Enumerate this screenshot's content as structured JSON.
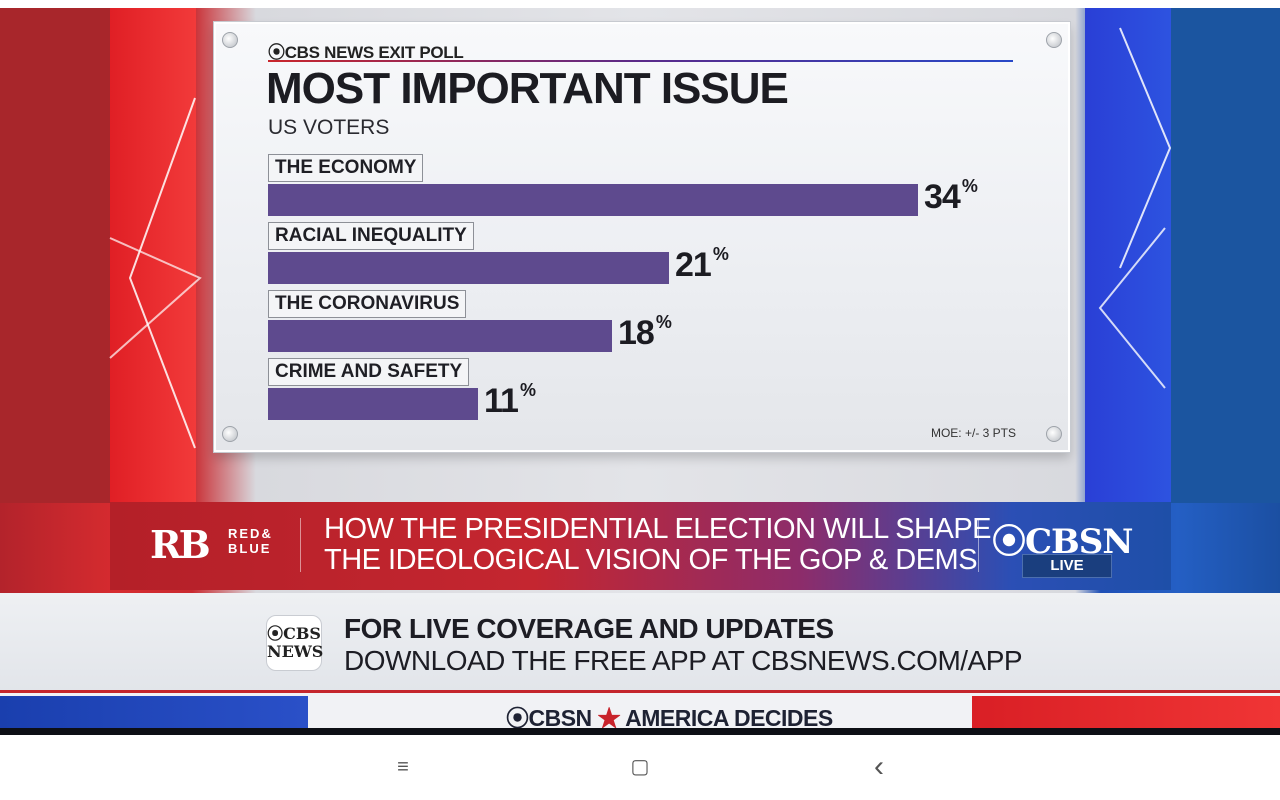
{
  "board": {
    "brand": "⦿CBS NEWS EXIT POLL",
    "title": "MOST IMPORTANT ISSUE",
    "subtitle": "US VOTERS",
    "moe": "MOE: +/- 3 PTS"
  },
  "chart_data": {
    "type": "bar",
    "title": "MOST IMPORTANT ISSUE",
    "subtitle": "US VOTERS",
    "categories": [
      "THE ECONOMY",
      "RACIAL INEQUALITY",
      "THE CORONAVIRUS",
      "CRIME AND SAFETY"
    ],
    "values": [
      34,
      21,
      18,
      11
    ],
    "value_labels": [
      "34",
      "21",
      "18",
      "11"
    ],
    "unit": "%",
    "bar_color": "#5e4a8e",
    "annotation": "MOE: +/- 3 PTS"
  },
  "lower_third": {
    "rb_logo": "RB",
    "rb_line1": "RED&",
    "rb_line2": "BLUE",
    "headline_line1": "HOW THE PRESIDENTIAL ELECTION WILL SHAPE",
    "headline_line2": "THE IDEOLOGICAL VISION OF THE GOP & DEMS",
    "network": "⦿CBSN",
    "live": "LIVE"
  },
  "promo": {
    "logo_line1": "⦿CBS",
    "logo_line2": "NEWS",
    "line1": "FOR LIVE COVERAGE AND UPDATES",
    "line2": "DOWNLOAD THE FREE APP AT CBSNEWS.COM/APP"
  },
  "ticker": {
    "left": "⦿CBSN",
    "star": "★",
    "right": "AMERICA DECIDES"
  },
  "navbar": {
    "menu_icon": "≡",
    "home_icon": "▢",
    "back_icon": "‹"
  },
  "colors": {
    "red": "#d62b2f",
    "blue": "#245fc4",
    "bar": "#5e4a8e"
  }
}
